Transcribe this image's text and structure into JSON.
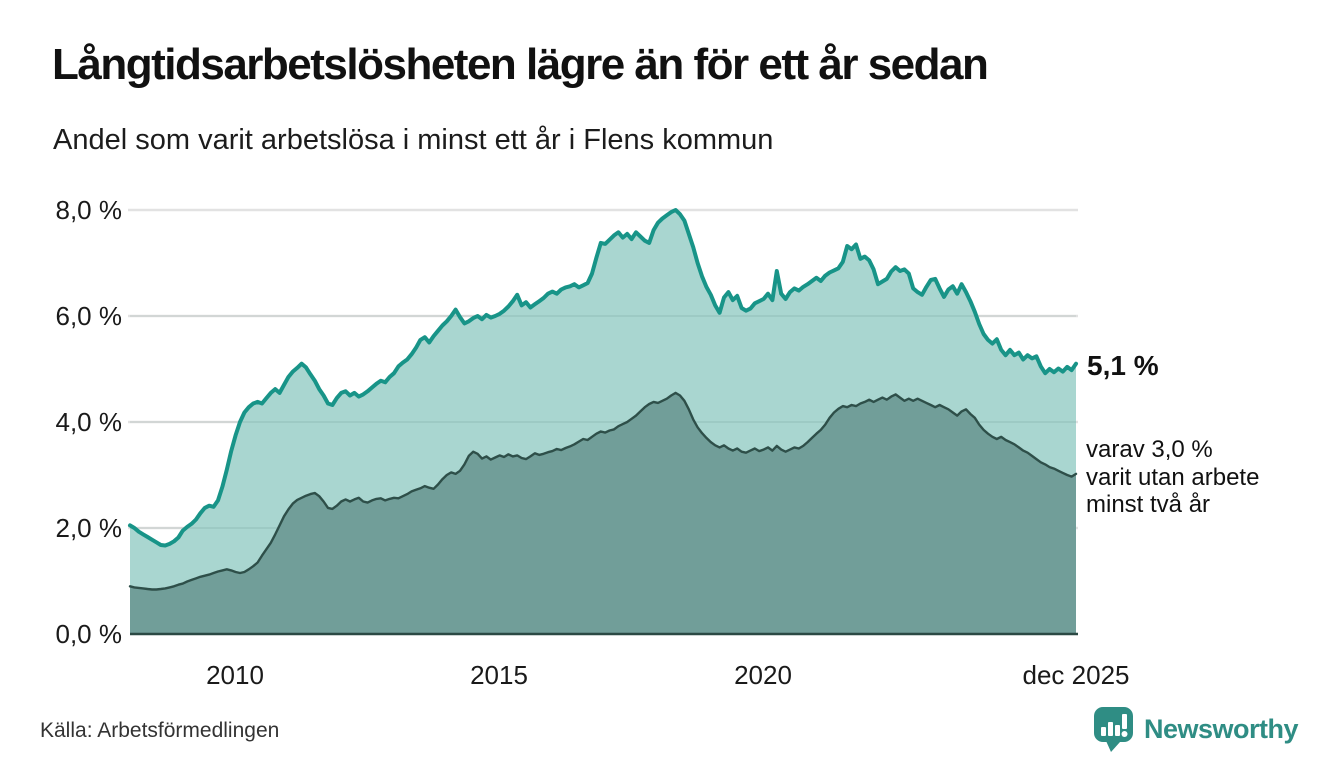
{
  "header": {
    "title": "Långtidsarbetslösheten lägre än för ett år sedan",
    "subtitle": "Andel som varit arbetslösa i minst ett år i Flens kommun"
  },
  "chart_data": {
    "type": "area",
    "title": "Långtidsarbetslösheten lägre än för ett år sedan",
    "subtitle": "Andel som varit arbetslösa i minst ett år i Flens kommun",
    "xlim": [
      2008.0,
      2025.92
    ],
    "ylim": [
      0,
      8
    ],
    "grid": "horizontal",
    "x_axis": {
      "tick_labels": [
        "2010",
        "2015",
        "2020",
        "dec 2025"
      ],
      "tick_values": [
        2010.0,
        2015.0,
        2020.0,
        2025.92
      ]
    },
    "y_axis": {
      "tick_labels": [
        "8,0 %",
        "6,0 %",
        "4,0 %",
        "2,0 %",
        "0,0 %"
      ],
      "tick_values": [
        8,
        6,
        4,
        2,
        0
      ]
    },
    "x_start": 2008.0,
    "x_step_months": 1,
    "series": [
      {
        "name": "arbetslösa minst ett år",
        "end_value": 5.1,
        "values": [
          2.05,
          2.0,
          1.93,
          1.88,
          1.83,
          1.78,
          1.73,
          1.68,
          1.67,
          1.7,
          1.75,
          1.82,
          1.95,
          2.02,
          2.08,
          2.16,
          2.28,
          2.38,
          2.42,
          2.4,
          2.52,
          2.78,
          3.1,
          3.45,
          3.75,
          4.0,
          4.18,
          4.28,
          4.35,
          4.38,
          4.35,
          4.45,
          4.55,
          4.62,
          4.55,
          4.7,
          4.85,
          4.95,
          5.02,
          5.1,
          5.03,
          4.9,
          4.78,
          4.62,
          4.5,
          4.35,
          4.32,
          4.45,
          4.55,
          4.58,
          4.5,
          4.55,
          4.48,
          4.52,
          4.58,
          4.65,
          4.72,
          4.78,
          4.75,
          4.85,
          4.92,
          5.05,
          5.12,
          5.18,
          5.28,
          5.4,
          5.55,
          5.6,
          5.5,
          5.62,
          5.72,
          5.82,
          5.9,
          6.0,
          6.12,
          5.98,
          5.86,
          5.9,
          5.96,
          6.0,
          5.94,
          6.02,
          5.97,
          6.0,
          6.04,
          6.1,
          6.18,
          6.28,
          6.4,
          6.2,
          6.26,
          6.16,
          6.22,
          6.28,
          6.34,
          6.42,
          6.46,
          6.42,
          6.5,
          6.54,
          6.56,
          6.6,
          6.54,
          6.58,
          6.62,
          6.8,
          7.1,
          7.38,
          7.36,
          7.44,
          7.52,
          7.58,
          7.48,
          7.55,
          7.45,
          7.58,
          7.5,
          7.42,
          7.38,
          7.62,
          7.76,
          7.84,
          7.9,
          7.96,
          8.0,
          7.92,
          7.8,
          7.55,
          7.3,
          7.0,
          6.75,
          6.55,
          6.4,
          6.2,
          6.06,
          6.35,
          6.45,
          6.3,
          6.38,
          6.15,
          6.1,
          6.14,
          6.24,
          6.28,
          6.32,
          6.42,
          6.3,
          6.85,
          6.42,
          6.32,
          6.45,
          6.52,
          6.48,
          6.55,
          6.6,
          6.66,
          6.72,
          6.66,
          6.76,
          6.82,
          6.86,
          6.9,
          7.02,
          7.32,
          7.26,
          7.35,
          7.08,
          7.12,
          7.05,
          6.88,
          6.6,
          6.65,
          6.7,
          6.84,
          6.92,
          6.85,
          6.88,
          6.8,
          6.52,
          6.45,
          6.4,
          6.55,
          6.68,
          6.7,
          6.52,
          6.36,
          6.5,
          6.56,
          6.42,
          6.6,
          6.45,
          6.28,
          6.08,
          5.85,
          5.66,
          5.55,
          5.48,
          5.56,
          5.36,
          5.26,
          5.36,
          5.26,
          5.31,
          5.18,
          5.26,
          5.2,
          5.24,
          5.05,
          4.92,
          5.0,
          4.94,
          5.01,
          4.95,
          5.04,
          4.98,
          5.1
        ]
      },
      {
        "name": "varav utan arbete minst två år",
        "end_value": 3.0,
        "values": [
          0.9,
          0.88,
          0.87,
          0.86,
          0.85,
          0.84,
          0.84,
          0.85,
          0.86,
          0.88,
          0.9,
          0.93,
          0.95,
          0.99,
          1.02,
          1.05,
          1.08,
          1.1,
          1.12,
          1.15,
          1.18,
          1.2,
          1.22,
          1.2,
          1.17,
          1.15,
          1.17,
          1.22,
          1.28,
          1.35,
          1.48,
          1.6,
          1.72,
          1.88,
          2.05,
          2.22,
          2.35,
          2.46,
          2.53,
          2.57,
          2.61,
          2.64,
          2.66,
          2.6,
          2.5,
          2.38,
          2.36,
          2.42,
          2.5,
          2.54,
          2.5,
          2.54,
          2.57,
          2.5,
          2.48,
          2.52,
          2.55,
          2.56,
          2.52,
          2.55,
          2.57,
          2.56,
          2.6,
          2.64,
          2.69,
          2.72,
          2.75,
          2.79,
          2.76,
          2.74,
          2.82,
          2.92,
          3.0,
          3.05,
          3.02,
          3.08,
          3.2,
          3.36,
          3.44,
          3.4,
          3.31,
          3.35,
          3.29,
          3.33,
          3.37,
          3.34,
          3.39,
          3.35,
          3.37,
          3.32,
          3.3,
          3.35,
          3.41,
          3.38,
          3.4,
          3.43,
          3.45,
          3.49,
          3.47,
          3.51,
          3.54,
          3.58,
          3.63,
          3.68,
          3.66,
          3.72,
          3.78,
          3.82,
          3.8,
          3.84,
          3.86,
          3.92,
          3.96,
          4.0,
          4.06,
          4.12,
          4.2,
          4.28,
          4.34,
          4.38,
          4.36,
          4.4,
          4.44,
          4.5,
          4.55,
          4.5,
          4.4,
          4.24,
          4.05,
          3.9,
          3.79,
          3.7,
          3.62,
          3.56,
          3.52,
          3.56,
          3.5,
          3.46,
          3.5,
          3.44,
          3.42,
          3.46,
          3.5,
          3.45,
          3.48,
          3.52,
          3.46,
          3.55,
          3.48,
          3.44,
          3.48,
          3.52,
          3.5,
          3.55,
          3.62,
          3.7,
          3.78,
          3.85,
          3.95,
          4.08,
          4.18,
          4.25,
          4.3,
          4.28,
          4.32,
          4.3,
          4.35,
          4.38,
          4.42,
          4.38,
          4.42,
          4.46,
          4.42,
          4.48,
          4.52,
          4.46,
          4.4,
          4.44,
          4.4,
          4.44,
          4.4,
          4.36,
          4.32,
          4.28,
          4.32,
          4.28,
          4.24,
          4.18,
          4.12,
          4.2,
          4.24,
          4.15,
          4.08,
          3.95,
          3.85,
          3.78,
          3.72,
          3.68,
          3.72,
          3.66,
          3.62,
          3.58,
          3.52,
          3.46,
          3.42,
          3.36,
          3.3,
          3.24,
          3.2,
          3.15,
          3.12,
          3.08,
          3.04,
          3.0,
          2.97,
          3.02
        ]
      }
    ],
    "annotations": {
      "end_label": "5,1 %",
      "secondary_lines": [
        "varav 3,0 %",
        "varit utan arbete",
        "minst två år"
      ]
    },
    "legend_position": "right-annotations"
  },
  "colors": {
    "line_teal": "#189488",
    "area_fill_light": "#a9d6d0",
    "line_dark": "#2e4f49",
    "area_fill_dark": "#719e99",
    "gridline": "#e2e2e2",
    "grid_overlay": "rgba(20,70,60,0.10)",
    "axis_baseline": "#2b4944",
    "brand_teal": "#2f8d84"
  },
  "footer": {
    "source": "Källa: Arbetsförmedlingen",
    "brand": "Newsworthy"
  }
}
